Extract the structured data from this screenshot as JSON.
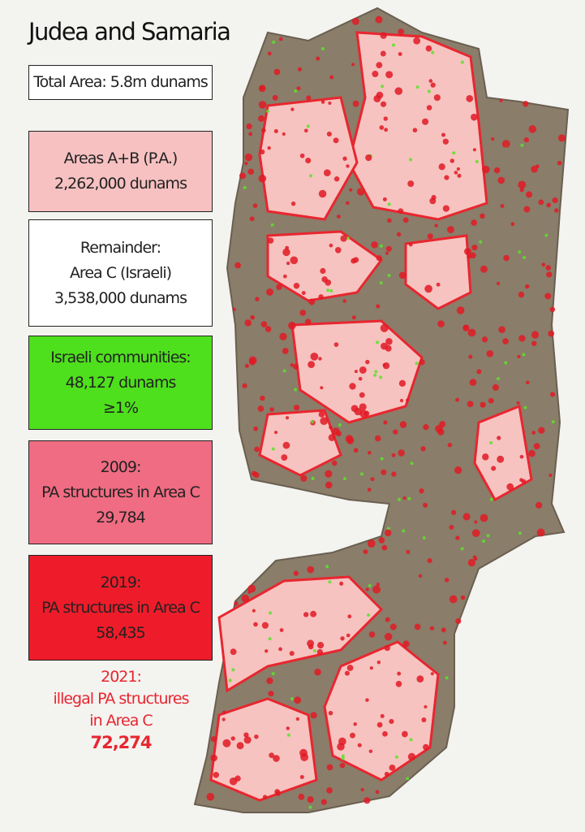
{
  "title": "Judea and Samaria",
  "boxes": [
    {
      "lines": [
        "Total Area: 5.8m dunams"
      ]
    },
    {
      "lines": [
        "Areas A+B (P.A.)",
        "2,262,000 dunams"
      ]
    },
    {
      "lines": [
        "Remainder:",
        "Area C (Israeli)",
        "3,538,000 dunams"
      ]
    },
    {
      "lines": [
        "Israeli communities:",
        "48,127 dunams",
        "≥1%"
      ]
    },
    {
      "lines": [
        "2009:",
        "PA structures in Area C",
        "29,784"
      ]
    },
    {
      "lines": [
        "2019:",
        "PA structures in Area C",
        "58,435"
      ]
    }
  ],
  "note": {
    "lines": [
      "2021:",
      "illegal PA structures",
      "in Area C",
      "72,274"
    ]
  }
}
